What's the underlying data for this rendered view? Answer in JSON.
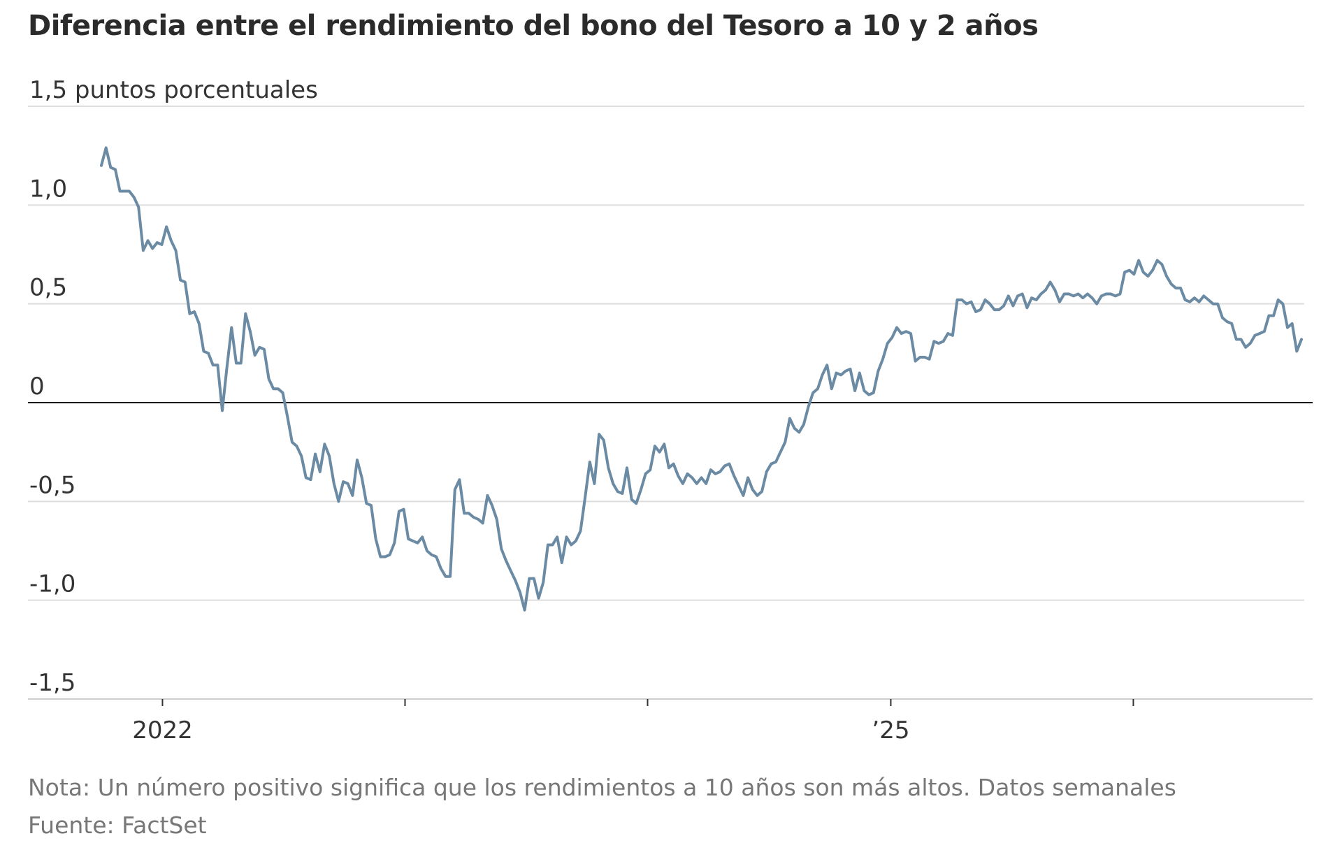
{
  "chart_data": {
    "type": "line",
    "title": "Diferencia entre el rendimiento del bono del Tesoro a 10 y 2 años",
    "ylabel": "puntos porcentuales",
    "ylim": [
      -1.5,
      1.5
    ],
    "yticks": [
      {
        "value": 1.5,
        "label": "1,5 puntos porcentuales"
      },
      {
        "value": 1.0,
        "label": "1,0"
      },
      {
        "value": 0.5,
        "label": "0,5"
      },
      {
        "value": 0,
        "label": "0"
      },
      {
        "value": -0.5,
        "label": "-0,5"
      },
      {
        "value": -1.0,
        "label": "-1,0"
      },
      {
        "value": -1.5,
        "label": "-1,5"
      }
    ],
    "xlim": [
      "2021-07-01",
      "2026-08-01"
    ],
    "xticks": [
      {
        "date": "2022-01-01",
        "label": "2022"
      },
      {
        "date": "2023-01-01",
        "label": ""
      },
      {
        "date": "2024-01-01",
        "label": ""
      },
      {
        "date": "2025-01-01",
        "label": "’25"
      },
      {
        "date": "2026-01-01",
        "label": ""
      }
    ],
    "grid": true,
    "legend": "none",
    "line_color": "#6b8aa3",
    "series": [
      {
        "frequency": "weekly",
        "points": [
          [
            "2021-10-01",
            1.2
          ],
          [
            "2021-10-08",
            1.29
          ],
          [
            "2021-10-15",
            1.19
          ],
          [
            "2021-10-22",
            1.18
          ],
          [
            "2021-10-29",
            1.07
          ],
          [
            "2021-11-05",
            1.07
          ],
          [
            "2021-11-12",
            1.07
          ],
          [
            "2021-11-19",
            1.04
          ],
          [
            "2021-11-26",
            0.99
          ],
          [
            "2021-12-03",
            0.77
          ],
          [
            "2021-12-10",
            0.82
          ],
          [
            "2021-12-17",
            0.78
          ],
          [
            "2021-12-24",
            0.81
          ],
          [
            "2021-12-31",
            0.8
          ],
          [
            "2022-01-07",
            0.89
          ],
          [
            "2022-01-14",
            0.82
          ],
          [
            "2022-01-21",
            0.77
          ],
          [
            "2022-01-28",
            0.62
          ],
          [
            "2022-02-04",
            0.61
          ],
          [
            "2022-02-11",
            0.45
          ],
          [
            "2022-02-18",
            0.46
          ],
          [
            "2022-02-25",
            0.4
          ],
          [
            "2022-03-04",
            0.26
          ],
          [
            "2022-03-11",
            0.25
          ],
          [
            "2022-03-18",
            0.19
          ],
          [
            "2022-03-25",
            0.19
          ],
          [
            "2022-04-01",
            -0.04
          ],
          [
            "2022-04-08",
            0.18
          ],
          [
            "2022-04-15",
            0.38
          ],
          [
            "2022-04-22",
            0.2
          ],
          [
            "2022-04-29",
            0.2
          ],
          [
            "2022-05-06",
            0.45
          ],
          [
            "2022-05-13",
            0.36
          ],
          [
            "2022-05-20",
            0.24
          ],
          [
            "2022-05-27",
            0.28
          ],
          [
            "2022-06-03",
            0.27
          ],
          [
            "2022-06-10",
            0.12
          ],
          [
            "2022-06-17",
            0.07
          ],
          [
            "2022-06-24",
            0.07
          ],
          [
            "2022-07-01",
            0.05
          ],
          [
            "2022-07-08",
            -0.07
          ],
          [
            "2022-07-15",
            -0.2
          ],
          [
            "2022-07-22",
            -0.22
          ],
          [
            "2022-07-29",
            -0.27
          ],
          [
            "2022-08-05",
            -0.38
          ],
          [
            "2022-08-12",
            -0.39
          ],
          [
            "2022-08-19",
            -0.26
          ],
          [
            "2022-08-26",
            -0.35
          ],
          [
            "2022-09-02",
            -0.21
          ],
          [
            "2022-09-09",
            -0.27
          ],
          [
            "2022-09-16",
            -0.41
          ],
          [
            "2022-09-23",
            -0.5
          ],
          [
            "2022-09-30",
            -0.4
          ],
          [
            "2022-10-07",
            -0.41
          ],
          [
            "2022-10-14",
            -0.47
          ],
          [
            "2022-10-21",
            -0.29
          ],
          [
            "2022-10-28",
            -0.38
          ],
          [
            "2022-11-04",
            -0.51
          ],
          [
            "2022-11-11",
            -0.52
          ],
          [
            "2022-11-18",
            -0.69
          ],
          [
            "2022-11-25",
            -0.78
          ],
          [
            "2022-12-02",
            -0.78
          ],
          [
            "2022-12-09",
            -0.77
          ],
          [
            "2022-12-16",
            -0.71
          ],
          [
            "2022-12-23",
            -0.55
          ],
          [
            "2022-12-30",
            -0.54
          ],
          [
            "2023-01-06",
            -0.69
          ],
          [
            "2023-01-13",
            -0.7
          ],
          [
            "2023-01-20",
            -0.71
          ],
          [
            "2023-01-27",
            -0.68
          ],
          [
            "2023-02-03",
            -0.75
          ],
          [
            "2023-02-10",
            -0.77
          ],
          [
            "2023-02-17",
            -0.78
          ],
          [
            "2023-02-24",
            -0.84
          ],
          [
            "2023-03-03",
            -0.88
          ],
          [
            "2023-03-10",
            -0.88
          ],
          [
            "2023-03-17",
            -0.44
          ],
          [
            "2023-03-24",
            -0.39
          ],
          [
            "2023-03-31",
            -0.56
          ],
          [
            "2023-04-07",
            -0.56
          ],
          [
            "2023-04-14",
            -0.58
          ],
          [
            "2023-04-21",
            -0.59
          ],
          [
            "2023-04-28",
            -0.61
          ],
          [
            "2023-05-05",
            -0.47
          ],
          [
            "2023-05-12",
            -0.52
          ],
          [
            "2023-05-19",
            -0.59
          ],
          [
            "2023-05-26",
            -0.74
          ],
          [
            "2023-06-02",
            -0.8
          ],
          [
            "2023-06-09",
            -0.85
          ],
          [
            "2023-06-16",
            -0.9
          ],
          [
            "2023-06-23",
            -0.96
          ],
          [
            "2023-06-30",
            -1.05
          ],
          [
            "2023-07-07",
            -0.89
          ],
          [
            "2023-07-14",
            -0.89
          ],
          [
            "2023-07-21",
            -0.99
          ],
          [
            "2023-07-28",
            -0.91
          ],
          [
            "2023-08-04",
            -0.72
          ],
          [
            "2023-08-11",
            -0.72
          ],
          [
            "2023-08-18",
            -0.68
          ],
          [
            "2023-08-25",
            -0.81
          ],
          [
            "2023-09-01",
            -0.68
          ],
          [
            "2023-09-08",
            -0.72
          ],
          [
            "2023-09-15",
            -0.7
          ],
          [
            "2023-09-22",
            -0.65
          ],
          [
            "2023-09-29",
            -0.48
          ],
          [
            "2023-10-06",
            -0.3
          ],
          [
            "2023-10-13",
            -0.41
          ],
          [
            "2023-10-20",
            -0.16
          ],
          [
            "2023-10-27",
            -0.19
          ],
          [
            "2023-11-03",
            -0.33
          ],
          [
            "2023-11-10",
            -0.41
          ],
          [
            "2023-11-17",
            -0.45
          ],
          [
            "2023-11-24",
            -0.46
          ],
          [
            "2023-12-01",
            -0.33
          ],
          [
            "2023-12-08",
            -0.49
          ],
          [
            "2023-12-15",
            -0.51
          ],
          [
            "2023-12-22",
            -0.44
          ],
          [
            "2023-12-29",
            -0.36
          ],
          [
            "2024-01-05",
            -0.34
          ],
          [
            "2024-01-12",
            -0.22
          ],
          [
            "2024-01-19",
            -0.25
          ],
          [
            "2024-01-26",
            -0.21
          ],
          [
            "2024-02-02",
            -0.33
          ],
          [
            "2024-02-09",
            -0.31
          ],
          [
            "2024-02-16",
            -0.37
          ],
          [
            "2024-02-23",
            -0.41
          ],
          [
            "2024-03-01",
            -0.36
          ],
          [
            "2024-03-08",
            -0.38
          ],
          [
            "2024-03-15",
            -0.41
          ],
          [
            "2024-03-22",
            -0.38
          ],
          [
            "2024-03-29",
            -0.41
          ],
          [
            "2024-04-05",
            -0.34
          ],
          [
            "2024-04-12",
            -0.36
          ],
          [
            "2024-04-19",
            -0.35
          ],
          [
            "2024-04-26",
            -0.32
          ],
          [
            "2024-05-03",
            -0.31
          ],
          [
            "2024-05-10",
            -0.37
          ],
          [
            "2024-05-17",
            -0.42
          ],
          [
            "2024-05-24",
            -0.47
          ],
          [
            "2024-05-31",
            -0.38
          ],
          [
            "2024-06-07",
            -0.44
          ],
          [
            "2024-06-14",
            -0.47
          ],
          [
            "2024-06-21",
            -0.45
          ],
          [
            "2024-06-28",
            -0.35
          ],
          [
            "2024-07-05",
            -0.31
          ],
          [
            "2024-07-12",
            -0.3
          ],
          [
            "2024-07-19",
            -0.25
          ],
          [
            "2024-07-26",
            -0.2
          ],
          [
            "2024-08-02",
            -0.08
          ],
          [
            "2024-08-09",
            -0.13
          ],
          [
            "2024-08-16",
            -0.15
          ],
          [
            "2024-08-23",
            -0.11
          ],
          [
            "2024-08-30",
            -0.02
          ],
          [
            "2024-09-06",
            0.05
          ],
          [
            "2024-09-13",
            0.07
          ],
          [
            "2024-09-20",
            0.14
          ],
          [
            "2024-09-27",
            0.19
          ],
          [
            "2024-10-04",
            0.07
          ],
          [
            "2024-10-11",
            0.15
          ],
          [
            "2024-10-18",
            0.14
          ],
          [
            "2024-10-25",
            0.16
          ],
          [
            "2024-11-01",
            0.17
          ],
          [
            "2024-11-08",
            0.06
          ],
          [
            "2024-11-15",
            0.15
          ],
          [
            "2024-11-22",
            0.06
          ],
          [
            "2024-11-29",
            0.04
          ],
          [
            "2024-12-06",
            0.05
          ],
          [
            "2024-12-13",
            0.16
          ],
          [
            "2024-12-20",
            0.22
          ],
          [
            "2024-12-27",
            0.3
          ],
          [
            "2025-01-03",
            0.33
          ],
          [
            "2025-01-10",
            0.38
          ],
          [
            "2025-01-17",
            0.35
          ],
          [
            "2025-01-24",
            0.36
          ],
          [
            "2025-01-31",
            0.35
          ],
          [
            "2025-02-07",
            0.21
          ],
          [
            "2025-02-14",
            0.23
          ],
          [
            "2025-02-21",
            0.23
          ],
          [
            "2025-02-28",
            0.22
          ],
          [
            "2025-03-07",
            0.31
          ],
          [
            "2025-03-14",
            0.3
          ],
          [
            "2025-03-21",
            0.31
          ],
          [
            "2025-03-28",
            0.35
          ],
          [
            "2025-04-04",
            0.34
          ],
          [
            "2025-04-11",
            0.52
          ],
          [
            "2025-04-18",
            0.52
          ],
          [
            "2025-04-25",
            0.5
          ],
          [
            "2025-05-02",
            0.51
          ],
          [
            "2025-05-09",
            0.46
          ],
          [
            "2025-05-16",
            0.47
          ],
          [
            "2025-05-23",
            0.52
          ],
          [
            "2025-05-30",
            0.5
          ],
          [
            "2025-06-06",
            0.47
          ],
          [
            "2025-06-13",
            0.47
          ],
          [
            "2025-06-20",
            0.49
          ],
          [
            "2025-06-27",
            0.54
          ],
          [
            "2025-07-04",
            0.49
          ],
          [
            "2025-07-11",
            0.54
          ],
          [
            "2025-07-18",
            0.55
          ],
          [
            "2025-07-25",
            0.48
          ],
          [
            "2025-08-01",
            0.53
          ],
          [
            "2025-08-08",
            0.52
          ],
          [
            "2025-08-15",
            0.55
          ],
          [
            "2025-08-22",
            0.57
          ],
          [
            "2025-08-29",
            0.61
          ],
          [
            "2025-09-05",
            0.57
          ],
          [
            "2025-09-12",
            0.51
          ],
          [
            "2025-09-19",
            0.55
          ],
          [
            "2025-09-26",
            0.55
          ],
          [
            "2025-10-03",
            0.54
          ],
          [
            "2025-10-10",
            0.55
          ],
          [
            "2025-10-17",
            0.53
          ],
          [
            "2025-10-24",
            0.55
          ],
          [
            "2025-10-31",
            0.53
          ],
          [
            "2025-11-07",
            0.5
          ],
          [
            "2025-11-14",
            0.54
          ],
          [
            "2025-11-21",
            0.55
          ],
          [
            "2025-11-28",
            0.55
          ],
          [
            "2025-12-05",
            0.54
          ],
          [
            "2025-12-12",
            0.55
          ],
          [
            "2025-12-19",
            0.66
          ],
          [
            "2025-12-26",
            0.67
          ],
          [
            "2026-01-02",
            0.65
          ],
          [
            "2026-01-09",
            0.72
          ],
          [
            "2026-01-16",
            0.66
          ],
          [
            "2026-01-23",
            0.64
          ],
          [
            "2026-01-30",
            0.67
          ],
          [
            "2026-02-06",
            0.72
          ],
          [
            "2026-02-13",
            0.7
          ],
          [
            "2026-02-20",
            0.64
          ],
          [
            "2026-02-27",
            0.6
          ],
          [
            "2026-03-06",
            0.58
          ],
          [
            "2026-03-13",
            0.58
          ],
          [
            "2026-03-20",
            0.52
          ],
          [
            "2026-03-27",
            0.51
          ],
          [
            "2026-04-03",
            0.53
          ],
          [
            "2026-04-10",
            0.51
          ],
          [
            "2026-04-17",
            0.54
          ],
          [
            "2026-04-24",
            0.52
          ],
          [
            "2026-05-01",
            0.5
          ],
          [
            "2026-05-08",
            0.5
          ],
          [
            "2026-05-15",
            0.43
          ],
          [
            "2026-05-22",
            0.41
          ],
          [
            "2026-05-29",
            0.4
          ],
          [
            "2026-06-05",
            0.32
          ],
          [
            "2026-06-12",
            0.32
          ],
          [
            "2026-06-19",
            0.28
          ],
          [
            "2026-06-26",
            0.3
          ],
          [
            "2026-07-03",
            0.34
          ],
          [
            "2026-07-10",
            0.35
          ],
          [
            "2026-07-17",
            0.36
          ],
          [
            "2026-07-24",
            0.44
          ],
          [
            "2026-07-31",
            0.44
          ],
          [
            "2026-08-07",
            0.52
          ],
          [
            "2026-08-14",
            0.5
          ],
          [
            "2026-08-21",
            0.38
          ],
          [
            "2026-08-28",
            0.4
          ],
          [
            "2026-09-04",
            0.26
          ],
          [
            "2026-09-11",
            0.32
          ]
        ]
      }
    ]
  },
  "notes": {
    "nota": "Nota: Un número positivo significa que los rendimientos a 10 años son más altos. Datos semanales",
    "fuente": "Fuente: FactSet"
  }
}
